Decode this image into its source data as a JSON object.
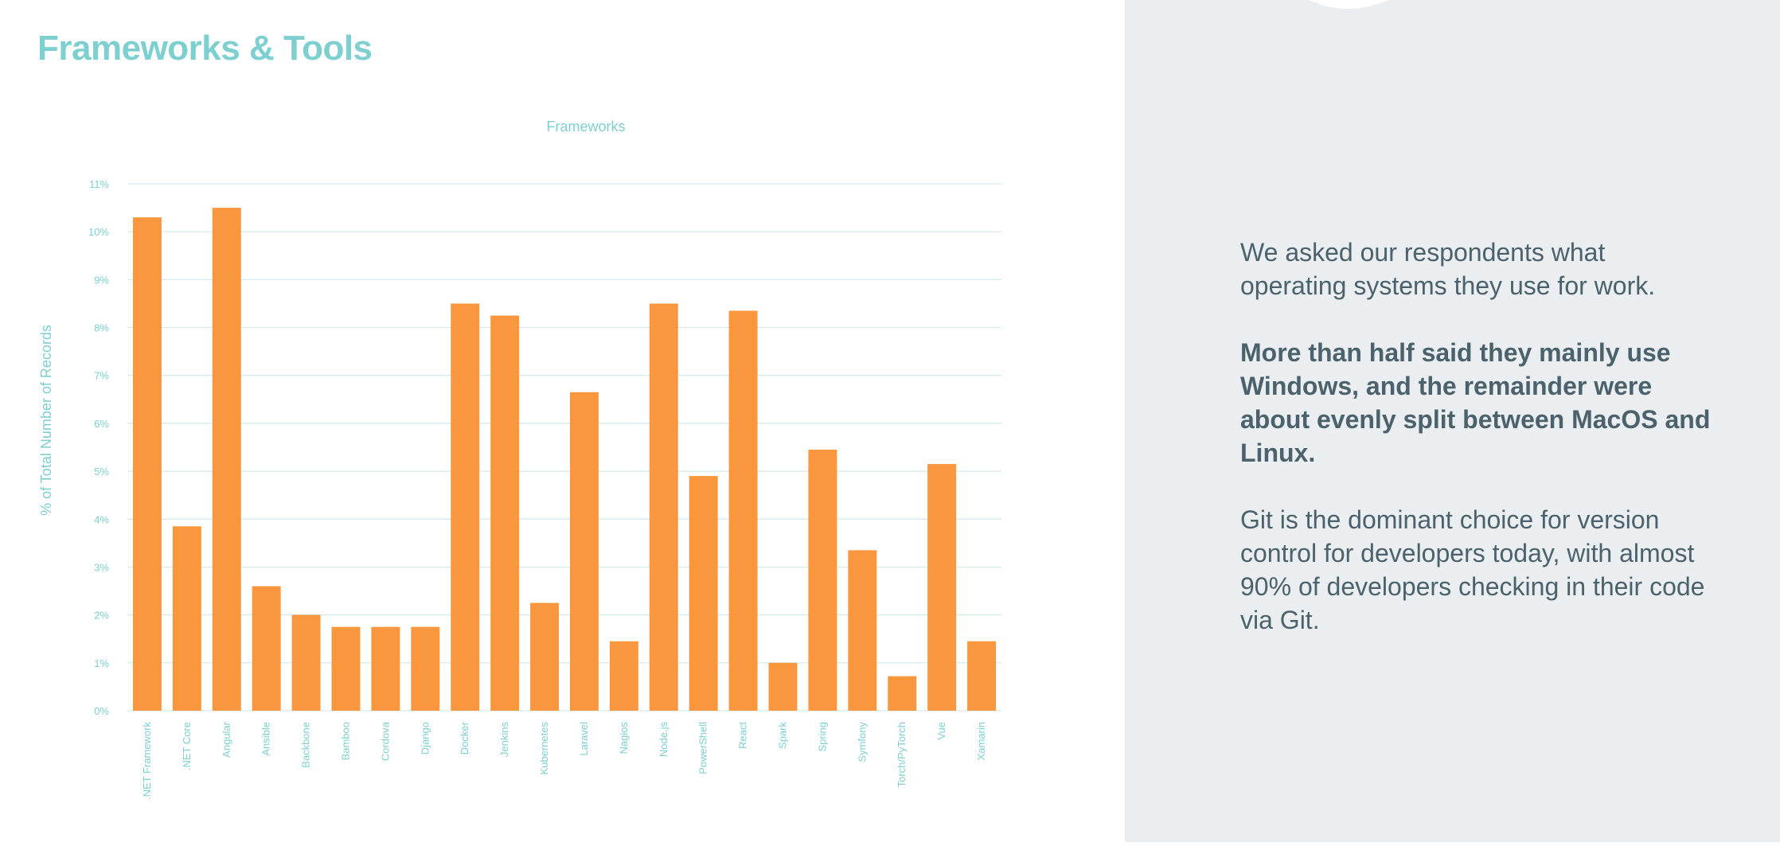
{
  "page": {
    "title": "Frameworks & Tools"
  },
  "panel": {
    "paragraph1": "We asked our respondents what operating systems they use for work.",
    "paragraph2": "More than half said they mainly use Windows, and the remainder were about evenly split between MacOS and Linux.",
    "paragraph3": "Git is the dominant choice for version control for developers today, with almost 90% of developers checking in their code via Git."
  },
  "colors": {
    "bar": "#fa963d",
    "accent": "#7ecfd0",
    "grid": "#d3eaee",
    "panel_bg": "#eaeef0",
    "panel_text": "#4b616b"
  },
  "chart_data": {
    "type": "bar",
    "title": "Frameworks",
    "xlabel": "",
    "ylabel": "% of Total Number of Records",
    "ylim": [
      0,
      11
    ],
    "yticks": [
      0,
      1,
      2,
      3,
      4,
      5,
      6,
      7,
      8,
      9,
      10,
      11
    ],
    "ytick_labels": [
      "0%",
      "1%",
      "2%",
      "3%",
      "4%",
      "5%",
      "6%",
      "7%",
      "8%",
      "9%",
      "10%",
      "11%"
    ],
    "grid": true,
    "categories": [
      ".NET Framework",
      ".NET Core",
      "Angular",
      "Ansible",
      "Backbone",
      "Bamboo",
      "Cordova",
      "Django",
      "Docker",
      "Jenkins",
      "Kubernetes",
      "Laravel",
      "Nagios",
      "Node.js",
      "PowerShell",
      "React",
      "Spark",
      "Spring",
      "Symfony",
      "Torch/PyTorch",
      "Vue",
      "Xamarin"
    ],
    "values": [
      10.3,
      3.85,
      10.5,
      2.6,
      2.0,
      1.75,
      1.75,
      1.75,
      8.5,
      8.25,
      2.25,
      6.65,
      1.45,
      8.5,
      4.9,
      8.35,
      1.0,
      5.45,
      3.35,
      0.72,
      5.15,
      1.45
    ]
  }
}
